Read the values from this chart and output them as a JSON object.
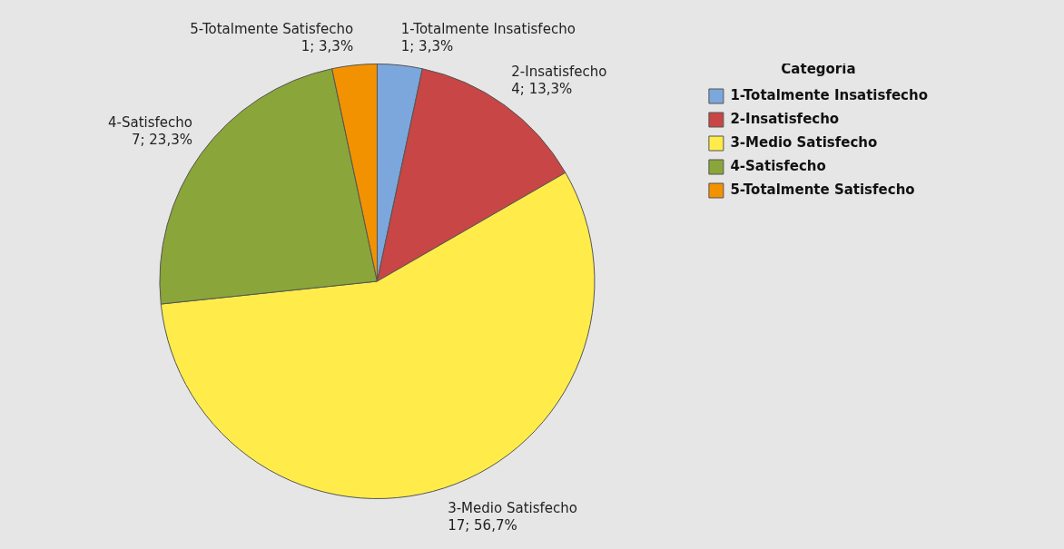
{
  "chart_data": {
    "type": "pie",
    "legend_title": "Categoría",
    "legend": "top right",
    "categories": [
      "1-Totalmente Insatisfecho",
      "2-Insatisfecho",
      "3-Medio Satisfecho",
      "4-Satisfecho",
      "5-Totalmente Satisfecho"
    ],
    "values": [
      1,
      4,
      17,
      7,
      1
    ],
    "colors": [
      "#7ba7dc",
      "#c84646",
      "#ffec4a",
      "#8aa53a",
      "#f39200"
    ],
    "value_labels": [
      "1; 3,3%",
      "4; 13,3%",
      "17; 56,7%",
      "7; 23,3%",
      "1; 3,3%"
    ]
  }
}
